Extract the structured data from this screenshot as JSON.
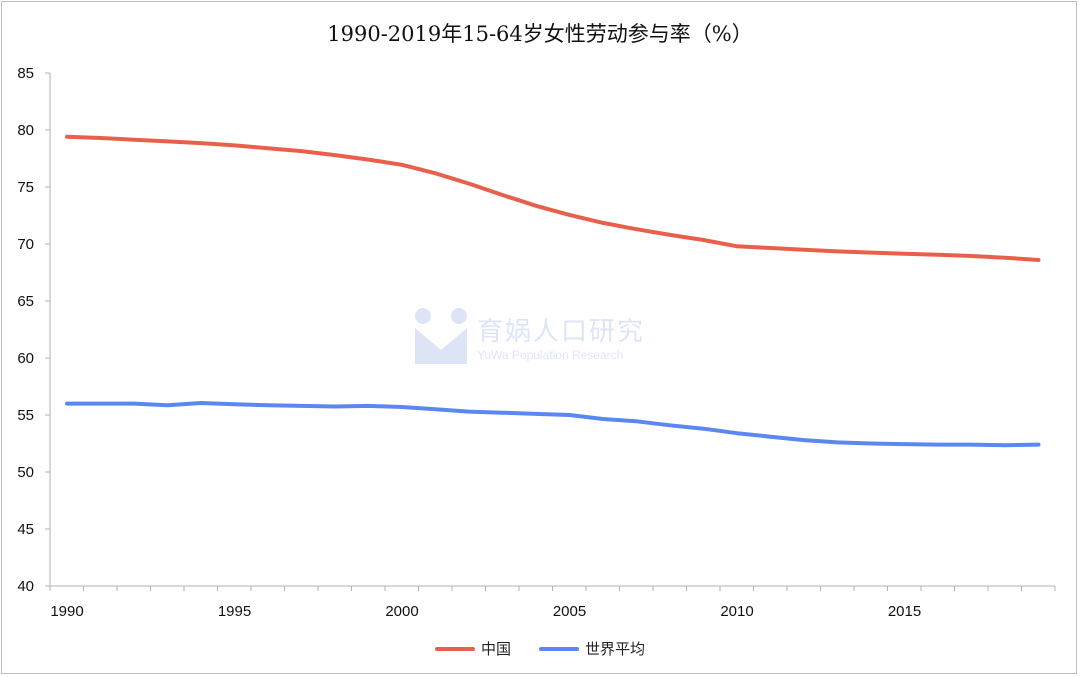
{
  "chart_data": {
    "type": "line",
    "title": "1990-2019年15-64岁女性劳动参与率（%）",
    "xlabel": "",
    "ylabel": "",
    "xlim": [
      1990,
      2019
    ],
    "ylim": [
      40,
      85
    ],
    "x_ticks": [
      "1990",
      "1995",
      "2000",
      "2005",
      "2010",
      "2015"
    ],
    "y_ticks": [
      "40",
      "45",
      "50",
      "55",
      "60",
      "65",
      "70",
      "75",
      "80",
      "85"
    ],
    "x": [
      1990,
      1991,
      1992,
      1993,
      1994,
      1995,
      1996,
      1997,
      1998,
      1999,
      2000,
      2001,
      2002,
      2003,
      2004,
      2005,
      2006,
      2007,
      2008,
      2009,
      2010,
      2011,
      2012,
      2013,
      2014,
      2015,
      2016,
      2017,
      2018,
      2019
    ],
    "series": [
      {
        "name": "中国",
        "color": "#e8604c",
        "values": [
          79.4,
          79.3,
          79.15,
          79.0,
          78.85,
          78.65,
          78.4,
          78.15,
          77.8,
          77.4,
          76.95,
          76.2,
          75.3,
          74.3,
          73.35,
          72.55,
          71.85,
          71.3,
          70.8,
          70.35,
          69.8,
          69.65,
          69.5,
          69.35,
          69.25,
          69.15,
          69.05,
          68.95,
          68.8,
          68.6
        ]
      },
      {
        "name": "世界平均",
        "color": "#5b87f0",
        "values": [
          56.0,
          56.0,
          56.0,
          55.85,
          56.05,
          55.95,
          55.85,
          55.8,
          55.75,
          55.8,
          55.7,
          55.5,
          55.3,
          55.2,
          55.1,
          55.0,
          54.65,
          54.45,
          54.1,
          53.8,
          53.4,
          53.1,
          52.8,
          52.6,
          52.5,
          52.45,
          52.4,
          52.4,
          52.35,
          52.4
        ]
      }
    ],
    "legend_position": "bottom"
  },
  "watermark": {
    "main": "育娲人口研究",
    "sub": "YuWa Population Research"
  }
}
